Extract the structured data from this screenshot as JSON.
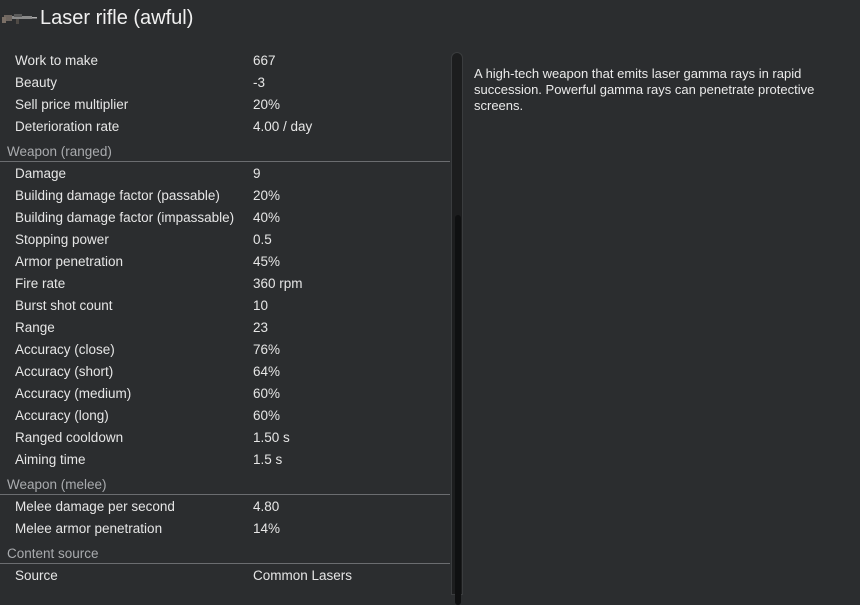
{
  "header": {
    "title": "Laser rifle (awful)",
    "icon": "laser-rifle-icon"
  },
  "stats": {
    "general": [
      {
        "label": "Work to make",
        "value": "667"
      },
      {
        "label": "Beauty",
        "value": "-3"
      },
      {
        "label": "Sell price multiplier",
        "value": "20%"
      },
      {
        "label": "Deterioration rate",
        "value": "4.00 / day"
      }
    ],
    "ranged": {
      "heading": "Weapon (ranged)",
      "rows": [
        {
          "label": "Damage",
          "value": "9"
        },
        {
          "label": "Building damage factor (passable)",
          "value": "20%"
        },
        {
          "label": "Building damage factor (impassable)",
          "value": "40%"
        },
        {
          "label": "Stopping power",
          "value": "0.5"
        },
        {
          "label": "Armor penetration",
          "value": "45%"
        },
        {
          "label": "Fire rate",
          "value": "360 rpm"
        },
        {
          "label": "Burst shot count",
          "value": "10"
        },
        {
          "label": "Range",
          "value": "23"
        },
        {
          "label": "Accuracy (close)",
          "value": "76%"
        },
        {
          "label": "Accuracy (short)",
          "value": "64%"
        },
        {
          "label": "Accuracy (medium)",
          "value": "60%"
        },
        {
          "label": "Accuracy (long)",
          "value": "60%"
        },
        {
          "label": "Ranged cooldown",
          "value": "1.50 s"
        },
        {
          "label": "Aiming time",
          "value": "1.5 s"
        }
      ]
    },
    "melee": {
      "heading": "Weapon (melee)",
      "rows": [
        {
          "label": "Melee damage per second",
          "value": "4.80"
        },
        {
          "label": "Melee armor penetration",
          "value": "14%"
        }
      ]
    },
    "content": {
      "heading": "Content source",
      "rows": [
        {
          "label": "Source",
          "value": "Common Lasers"
        }
      ]
    }
  },
  "description": "A high-tech weapon that emits laser gamma rays in rapid succession. Powerful gamma rays can penetrate protective screens.",
  "colors": {
    "background": "#2b2d2f",
    "section_heading": "#a9abae",
    "text": "#e6e6e6"
  }
}
